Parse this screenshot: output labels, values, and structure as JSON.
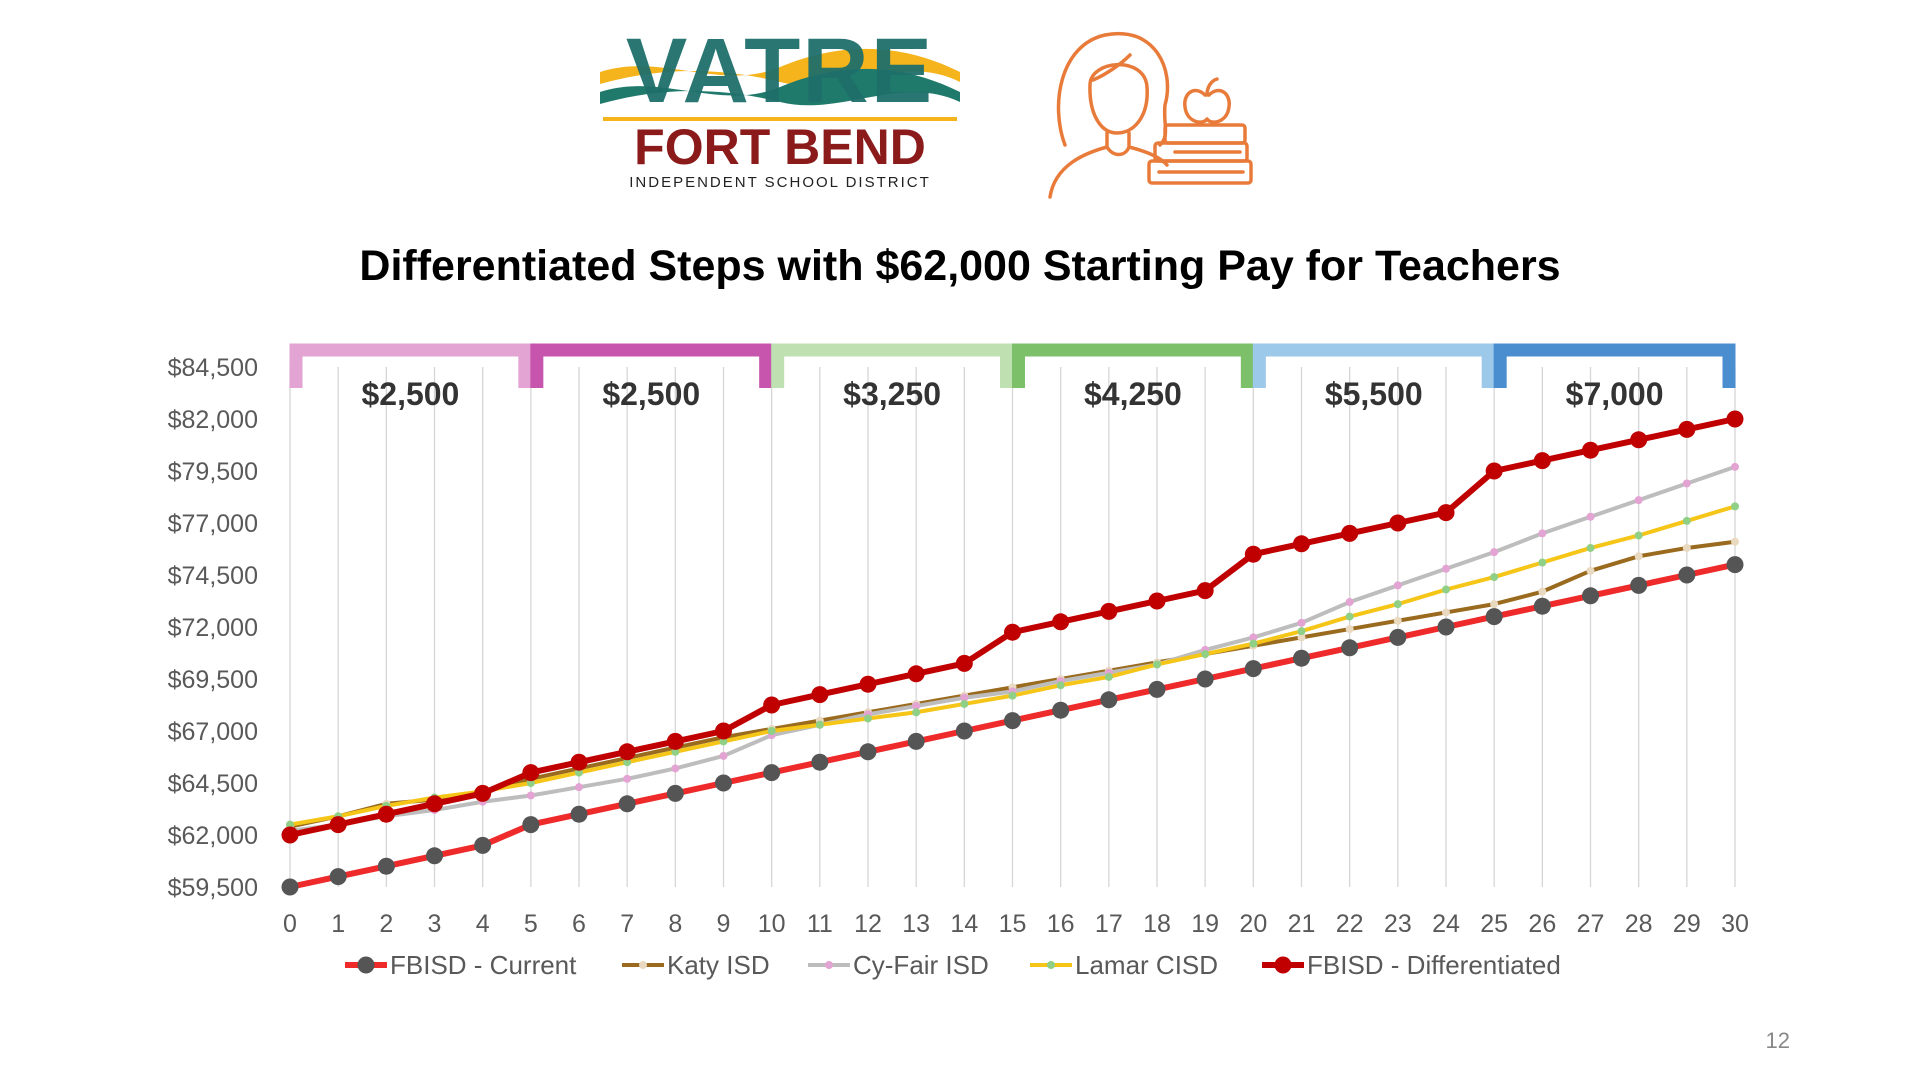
{
  "logo": {
    "top_text": "VATRE",
    "main_text": "FORT BEND",
    "subtitle": "INDEPENDENT SCHOOL DISTRICT"
  },
  "icon": {
    "name": "teacher-with-books-icon",
    "color": "#e87b3a"
  },
  "title": "Differentiated Steps with $62,000 Starting Pay for Teachers",
  "page_number": "12",
  "chart_data": {
    "type": "line",
    "x": [
      0,
      1,
      2,
      3,
      4,
      5,
      6,
      7,
      8,
      9,
      10,
      11,
      12,
      13,
      14,
      15,
      16,
      17,
      18,
      19,
      20,
      21,
      22,
      23,
      24,
      25,
      26,
      27,
      28,
      29,
      30
    ],
    "y_ticks": [
      "$59,500",
      "$62,000",
      "$64,500",
      "$67,000",
      "$69,500",
      "$72,000",
      "$74,500",
      "$77,000",
      "$79,500",
      "$82,000",
      "$84,500"
    ],
    "ylim": [
      59500,
      84500
    ],
    "grid": "vertical",
    "legend": "bottom",
    "step_bands": [
      {
        "label": "$2,500",
        "from": 0,
        "to": 5,
        "color": "#e3a3d3"
      },
      {
        "label": "$2,500",
        "from": 5,
        "to": 10,
        "color": "#c855ad"
      },
      {
        "label": "$3,250",
        "from": 10,
        "to": 15,
        "color": "#bfe0b0"
      },
      {
        "label": "$4,250",
        "from": 15,
        "to": 20,
        "color": "#7cc06a"
      },
      {
        "label": "$5,500",
        "from": 20,
        "to": 25,
        "color": "#9cc8ea"
      },
      {
        "label": "$7,000",
        "from": 25,
        "to": 30,
        "color": "#4a8ed0"
      }
    ],
    "series": [
      {
        "name": "FBISD - Current",
        "line_color": "#ee2a2a",
        "marker_color": "#555555",
        "marker": "big",
        "values": [
          59500,
          60000,
          60500,
          61000,
          61500,
          62500,
          63000,
          63500,
          64000,
          64500,
          65000,
          65500,
          66000,
          66500,
          67000,
          67500,
          68000,
          68500,
          69000,
          69500,
          70000,
          70500,
          71000,
          71500,
          72000,
          72500,
          73000,
          73500,
          74000,
          74500,
          75000
        ]
      },
      {
        "name": "Katy ISD",
        "line_color": "#9a6b1e",
        "marker_color": "#e8d9c0",
        "marker": "small",
        "values": [
          62400,
          62900,
          63500,
          63700,
          64100,
          64700,
          65200,
          65700,
          66200,
          66700,
          67100,
          67500,
          67900,
          68300,
          68700,
          69100,
          69500,
          69900,
          70300,
          70700,
          71100,
          71500,
          71900,
          72300,
          72700,
          73100,
          73700,
          74700,
          75400,
          75800,
          76100
        ]
      },
      {
        "name": "Cy-Fair ISD",
        "line_color": "#bdbdbd",
        "marker_color": "#e3a3d3",
        "marker": "small",
        "values": [
          62200,
          62500,
          62900,
          63200,
          63600,
          63900,
          64300,
          64700,
          65200,
          65800,
          66800,
          67300,
          67800,
          68200,
          68600,
          68900,
          69400,
          69800,
          70200,
          70900,
          71500,
          72200,
          73200,
          74000,
          74800,
          75600,
          76500,
          77300,
          78100,
          78900,
          79700
        ]
      },
      {
        "name": "Lamar CISD",
        "line_color": "#f5c518",
        "marker_color": "#8fcf86",
        "marker": "small",
        "values": [
          62500,
          62900,
          63400,
          63800,
          64100,
          64500,
          65000,
          65500,
          66000,
          66500,
          67000,
          67300,
          67600,
          67900,
          68300,
          68700,
          69200,
          69600,
          70200,
          70700,
          71200,
          71800,
          72500,
          73100,
          73800,
          74400,
          75100,
          75800,
          76400,
          77100,
          77800
        ]
      },
      {
        "name": "FBISD - Differentiated",
        "line_color": "#c00000",
        "marker_color": "#c00000",
        "marker": "big",
        "values": [
          62000,
          62500,
          63000,
          63500,
          64000,
          65000,
          65500,
          66000,
          66500,
          67000,
          68250,
          68750,
          69250,
          69750,
          70250,
          71750,
          72250,
          72750,
          73250,
          73750,
          75500,
          76000,
          76500,
          77000,
          77500,
          79500,
          80000,
          80500,
          81000,
          81500,
          82000
        ]
      }
    ]
  }
}
